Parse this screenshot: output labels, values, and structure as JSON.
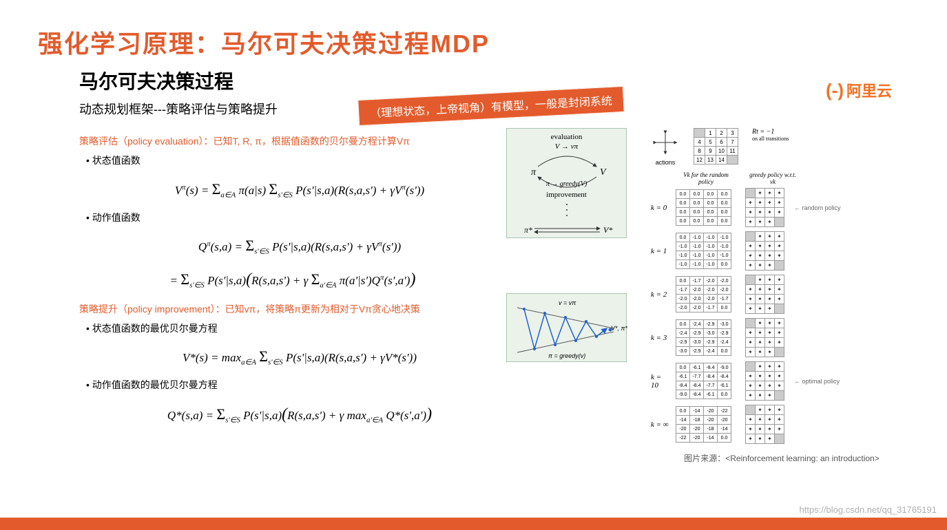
{
  "colors": {
    "accent_orange": "#e35b2c",
    "accent_orange_dark": "#d14a1f",
    "logo_orange": "#f37021",
    "text_black": "#222222",
    "diagram_bg": "#eaf2ea",
    "diagram_border": "#8fb394",
    "arrow_blue": "#2060d0",
    "footer_bar": "#e35b2c",
    "watermark": "rgba(120,120,120,0.55)"
  },
  "title": "强化学习原理：马尔可夫决策过程MDP",
  "subtitle": "马尔可夫决策过程",
  "dp_line": "动态规划框架---策略评估与策略提升",
  "callout": "（理想状态，上帝视角）有模型，一般是封闭系统",
  "logo": {
    "brackets": "(-)",
    "text": "阿里云"
  },
  "policy_eval": {
    "header": "策略评估（policy evaluation）：已知T, R, π，根据值函数的贝尔曼方程计算Vπ",
    "bullet1": "• 状态值函数",
    "formula1": "Vπ(s) = Σa∈A π(a|s) Σs'∈S P(s'|s,a)(R(s,a,s') + γVπ(s'))",
    "bullet2": "• 动作值函数",
    "formula2": "Qπ(s,a) = Σs'∈S P(s'|s,a)(R(s,a,s') + γVπ(s'))",
    "formula3": "= Σs'∈S P(s'|s,a)(R(s,a,s') + γ Σa'∈A π(a'|s')Qπ(s',a'))"
  },
  "policy_imp": {
    "header": "策略提升（policy improvement）：已知vπ，将策略π更新为相对于Vπ贪心地决策",
    "bullet1": "• 状态值函数的最优贝尔曼方程",
    "formula1": "V*(s) = maxa∈A Σs'∈S P(s'|s,a)(R(s,a,s') + γV*(s'))",
    "bullet2": "• 动作值函数的最优贝尔曼方程",
    "formula2": "Q*(s,a) = Σs'∈S P(s'|s,a)(R(s,a,s') + γ maxa'∈A Q*(s',a'))"
  },
  "diagram1": {
    "top": "evaluation",
    "top_arrow": "V → vπ",
    "left": "π",
    "right": "V",
    "bottom_arrow": "π → greedy(V)",
    "bottom": "improvement",
    "final_left": "π*",
    "final_right": "V*"
  },
  "diagram2": {
    "top_label": "v = vπ",
    "right_label": "V*, π*",
    "bottom_label": "π = greedy(v)"
  },
  "gridworld": {
    "actions_label": "actions",
    "cells": [
      "",
      "1",
      "2",
      "3",
      "4",
      "5",
      "6",
      "7",
      "8",
      "9",
      "10",
      "11",
      "12",
      "13",
      "14",
      ""
    ],
    "reward": "Rt = −1",
    "reward_sub": "on all transitions",
    "col1_header": "Vk for the\nrandom policy",
    "col2_header": "greedy policy\nw.r.t. vk",
    "iterations": [
      {
        "k": "k = 0",
        "vals": [
          "0.0",
          "0.0",
          "0.0",
          "0.0",
          "0.0",
          "0.0",
          "0.0",
          "0.0",
          "0.0",
          "0.0",
          "0.0",
          "0.0",
          "0.0",
          "0.0",
          "0.0",
          "0.0"
        ],
        "note": "random policy"
      },
      {
        "k": "k = 1",
        "vals": [
          "0.0",
          "-1.0",
          "-1.0",
          "-1.0",
          "-1.0",
          "-1.0",
          "-1.0",
          "-1.0",
          "-1.0",
          "-1.0",
          "-1.0",
          "-1.0",
          "-1.0",
          "-1.0",
          "-1.0",
          "0.0"
        ]
      },
      {
        "k": "k = 2",
        "vals": [
          "0.0",
          "-1.7",
          "-2.0",
          "-2.0",
          "-1.7",
          "-2.0",
          "-2.0",
          "-2.0",
          "-2.0",
          "-2.0",
          "-2.0",
          "-1.7",
          "-2.0",
          "-2.0",
          "-1.7",
          "0.0"
        ]
      },
      {
        "k": "k = 3",
        "vals": [
          "0.0",
          "-2.4",
          "-2.9",
          "-3.0",
          "-2.4",
          "-2.9",
          "-3.0",
          "-2.9",
          "-2.9",
          "-3.0",
          "-2.9",
          "-2.4",
          "-3.0",
          "-2.9",
          "-2.4",
          "0.0"
        ]
      },
      {
        "k": "k = 10",
        "vals": [
          "0.0",
          "-6.1",
          "-8.4",
          "-9.0",
          "-6.1",
          "-7.7",
          "-8.4",
          "-8.4",
          "-8.4",
          "-8.4",
          "-7.7",
          "-6.1",
          "-9.0",
          "-8.4",
          "-6.1",
          "0.0"
        ],
        "note": "optimal policy"
      },
      {
        "k": "k = ∞",
        "vals": [
          "0.0",
          "-14",
          "-20",
          "-22",
          "-14",
          "-18",
          "-20",
          "-20",
          "-20",
          "-20",
          "-18",
          "-14",
          "-22",
          "-20",
          "-14",
          "0.0"
        ]
      }
    ]
  },
  "citation": "图片来源：<Reinforcement learning: an introduction>",
  "watermark": "https://blog.csdn.net/qq_31765191"
}
